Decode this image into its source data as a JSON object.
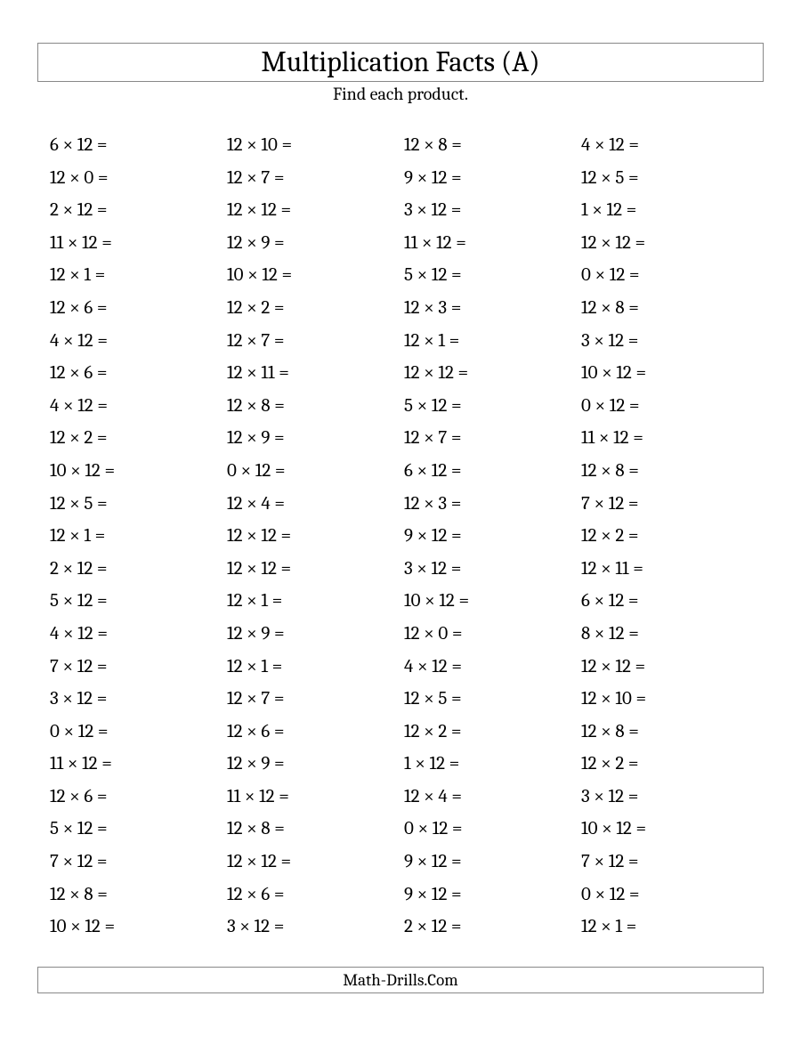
{
  "title": "Multiplication Facts (A)",
  "subtitle": "Find each product.",
  "footer": "Math-Drills.Com",
  "style": {
    "background_color": "#ffffff",
    "text_color": "#000000",
    "border_color": "#888888",
    "title_fontsize": 32,
    "subtitle_fontsize": 20,
    "problem_fontsize": 21,
    "footer_fontsize": 19,
    "font_family": "Cambria, Georgia, serif",
    "columns": 4,
    "rows": 25,
    "multiply_symbol": "×",
    "equals_symbol": "="
  },
  "problems": {
    "col1": [
      [
        6,
        12
      ],
      [
        12,
        0
      ],
      [
        2,
        12
      ],
      [
        11,
        12
      ],
      [
        12,
        1
      ],
      [
        12,
        6
      ],
      [
        4,
        12
      ],
      [
        12,
        6
      ],
      [
        4,
        12
      ],
      [
        12,
        2
      ],
      [
        10,
        12
      ],
      [
        12,
        5
      ],
      [
        12,
        1
      ],
      [
        2,
        12
      ],
      [
        5,
        12
      ],
      [
        4,
        12
      ],
      [
        7,
        12
      ],
      [
        3,
        12
      ],
      [
        0,
        12
      ],
      [
        11,
        12
      ],
      [
        12,
        6
      ],
      [
        5,
        12
      ],
      [
        7,
        12
      ],
      [
        12,
        8
      ],
      [
        10,
        12
      ]
    ],
    "col2": [
      [
        12,
        10
      ],
      [
        12,
        7
      ],
      [
        12,
        12
      ],
      [
        12,
        9
      ],
      [
        10,
        12
      ],
      [
        12,
        2
      ],
      [
        12,
        7
      ],
      [
        12,
        11
      ],
      [
        12,
        8
      ],
      [
        12,
        9
      ],
      [
        0,
        12
      ],
      [
        12,
        4
      ],
      [
        12,
        12
      ],
      [
        12,
        12
      ],
      [
        12,
        1
      ],
      [
        12,
        9
      ],
      [
        12,
        1
      ],
      [
        12,
        7
      ],
      [
        12,
        6
      ],
      [
        12,
        9
      ],
      [
        11,
        12
      ],
      [
        12,
        8
      ],
      [
        12,
        12
      ],
      [
        12,
        6
      ],
      [
        3,
        12
      ]
    ],
    "col3": [
      [
        12,
        8
      ],
      [
        9,
        12
      ],
      [
        3,
        12
      ],
      [
        11,
        12
      ],
      [
        5,
        12
      ],
      [
        12,
        3
      ],
      [
        12,
        1
      ],
      [
        12,
        12
      ],
      [
        5,
        12
      ],
      [
        12,
        7
      ],
      [
        6,
        12
      ],
      [
        12,
        3
      ],
      [
        9,
        12
      ],
      [
        3,
        12
      ],
      [
        10,
        12
      ],
      [
        12,
        0
      ],
      [
        4,
        12
      ],
      [
        12,
        5
      ],
      [
        12,
        2
      ],
      [
        1,
        12
      ],
      [
        12,
        4
      ],
      [
        0,
        12
      ],
      [
        9,
        12
      ],
      [
        9,
        12
      ],
      [
        2,
        12
      ]
    ],
    "col4": [
      [
        4,
        12
      ],
      [
        12,
        5
      ],
      [
        1,
        12
      ],
      [
        12,
        12
      ],
      [
        0,
        12
      ],
      [
        12,
        8
      ],
      [
        3,
        12
      ],
      [
        10,
        12
      ],
      [
        0,
        12
      ],
      [
        11,
        12
      ],
      [
        12,
        8
      ],
      [
        7,
        12
      ],
      [
        12,
        2
      ],
      [
        12,
        11
      ],
      [
        6,
        12
      ],
      [
        8,
        12
      ],
      [
        12,
        12
      ],
      [
        12,
        10
      ],
      [
        12,
        8
      ],
      [
        12,
        2
      ],
      [
        3,
        12
      ],
      [
        10,
        12
      ],
      [
        7,
        12
      ],
      [
        0,
        12
      ],
      [
        12,
        1
      ]
    ]
  }
}
